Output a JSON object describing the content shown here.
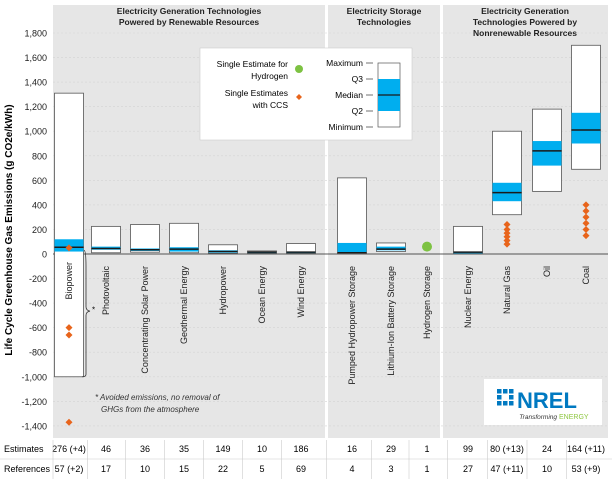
{
  "chart_data": {
    "type": "box",
    "ylabel": "Life Cycle Greenhouse Gas Emissions (g CO2e/kWh)",
    "ylim": [
      -1500,
      1900
    ],
    "yticks": [
      -1400,
      -1200,
      -1000,
      -800,
      -600,
      -400,
      -200,
      0,
      200,
      400,
      600,
      800,
      1000,
      1200,
      1400,
      1600,
      1800
    ],
    "ytick_labels": [
      "-1,400",
      "-1,200",
      "-1,000",
      "-800",
      "-600",
      "-400",
      "-200",
      "0",
      "200",
      "400",
      "600",
      "800",
      "1,000",
      "1,200",
      "1,400",
      "1,600",
      "1,800"
    ],
    "grid": true,
    "panels": [
      {
        "title": "Electricity Generation Technologies Powered by Renewable Resources",
        "title_lines": [
          "Electricity Generation Technologies",
          "Powered by Renewable Resources"
        ]
      },
      {
        "title": "Electricity Storage Technologies",
        "title_lines": [
          "Electricity Storage",
          "Technologies"
        ]
      },
      {
        "title": "Electricity Generation Technologies Powered by Nonrenewable Resources",
        "title_lines": [
          "Electricity Generation",
          "Technologies Powered by",
          "Nonrenewable Resources"
        ]
      }
    ],
    "categories": [
      {
        "name": "Biopower",
        "panel": 0,
        "min": -1000,
        "q1": 20,
        "median": 55,
        "q3": 120,
        "max": 1310,
        "ccs": [
          50,
          -600,
          -660,
          -1370
        ],
        "estimates": "276 (+4)",
        "references": "57 (+2)"
      },
      {
        "name": "Photovoltaic",
        "panel": 0,
        "min": 10,
        "q1": 35,
        "median": 45,
        "q3": 60,
        "max": 225,
        "estimates": "46",
        "references": "17"
      },
      {
        "name": "Concentrating Solar Power",
        "panel": 0,
        "min": 15,
        "q1": 25,
        "median": 35,
        "q3": 45,
        "max": 240,
        "estimates": "36",
        "references": "10"
      },
      {
        "name": "Geothermal Energy",
        "panel": 0,
        "min": 10,
        "q1": 20,
        "median": 40,
        "q3": 55,
        "max": 250,
        "estimates": "35",
        "references": "15"
      },
      {
        "name": "Hydropower",
        "panel": 0,
        "min": 5,
        "q1": 10,
        "median": 20,
        "q3": 30,
        "max": 75,
        "estimates": "149",
        "references": "22"
      },
      {
        "name": "Ocean Energy",
        "panel": 0,
        "min": 5,
        "q1": 10,
        "median": 15,
        "q3": 20,
        "max": 25,
        "estimates": "10",
        "references": "5"
      },
      {
        "name": "Wind Energy",
        "panel": 0,
        "min": 5,
        "q1": 10,
        "median": 15,
        "q3": 20,
        "max": 85,
        "estimates": "186",
        "references": "69"
      },
      {
        "name": "Pumped Hydropower Storage",
        "panel": 1,
        "min": 0,
        "q1": 5,
        "median": 10,
        "q3": 90,
        "max": 620,
        "estimates": "16",
        "references": "4"
      },
      {
        "name": "Lithium-Ion Battery Storage",
        "panel": 1,
        "min": 20,
        "q1": 30,
        "median": 40,
        "q3": 60,
        "max": 90,
        "estimates": "29",
        "references": "3"
      },
      {
        "name": "Hydrogen Storage",
        "panel": 1,
        "single": 60,
        "estimates": "1",
        "references": "1"
      },
      {
        "name": "Nuclear Energy",
        "panel": 2,
        "min": 5,
        "q1": 5,
        "median": 15,
        "q3": 20,
        "max": 225,
        "estimates": "99",
        "references": "27"
      },
      {
        "name": "Natural Gas",
        "panel": 2,
        "min": 320,
        "q1": 430,
        "median": 500,
        "q3": 580,
        "max": 1000,
        "ccs": [
          80,
          110,
          140,
          170,
          200,
          240
        ],
        "estimates": "80 (+13)",
        "references": "47 (+11)"
      },
      {
        "name": "Oil",
        "panel": 2,
        "min": 510,
        "q1": 720,
        "median": 840,
        "q3": 920,
        "max": 1180,
        "estimates": "24",
        "references": "10"
      },
      {
        "name": "Coal",
        "panel": 2,
        "min": 690,
        "q1": 900,
        "median": 1010,
        "q3": 1150,
        "max": 1700,
        "ccs": [
          150,
          200,
          250,
          300,
          350,
          400
        ],
        "estimates": "164 (+11)",
        "references": "53 (+9)"
      }
    ],
    "legend": {
      "hydrogen": "Single Estimate for Hydrogen",
      "hydrogen_lines": [
        "Single Estimate for",
        "Hydrogen"
      ],
      "ccs": "Single Estimates with CCS",
      "ccs_lines": [
        "Single Estimates",
        "with CCS"
      ],
      "box_labels": [
        "Maximum",
        "Q3",
        "Median",
        "Q2",
        "Minimum"
      ],
      "placement": "top-center"
    },
    "annotation_lines": [
      "* Avoided emissions, no removal of",
      "GHGs from the atmosphere"
    ],
    "annotation_star": "*",
    "table_row_labels": [
      "Estimates",
      "References"
    ]
  },
  "logo": {
    "name": "NREL",
    "tagline_a": "Transforming",
    "tagline_b": "ENERGY"
  },
  "colors": {
    "iqr": "#00aeef",
    "median": "#1a1a1a",
    "ccs": "#e8641b",
    "hydrogen": "#7dc242",
    "panel": "#e6e6e6",
    "nrel_blue": "#0079c1",
    "nrel_green": "#8dc63f"
  }
}
